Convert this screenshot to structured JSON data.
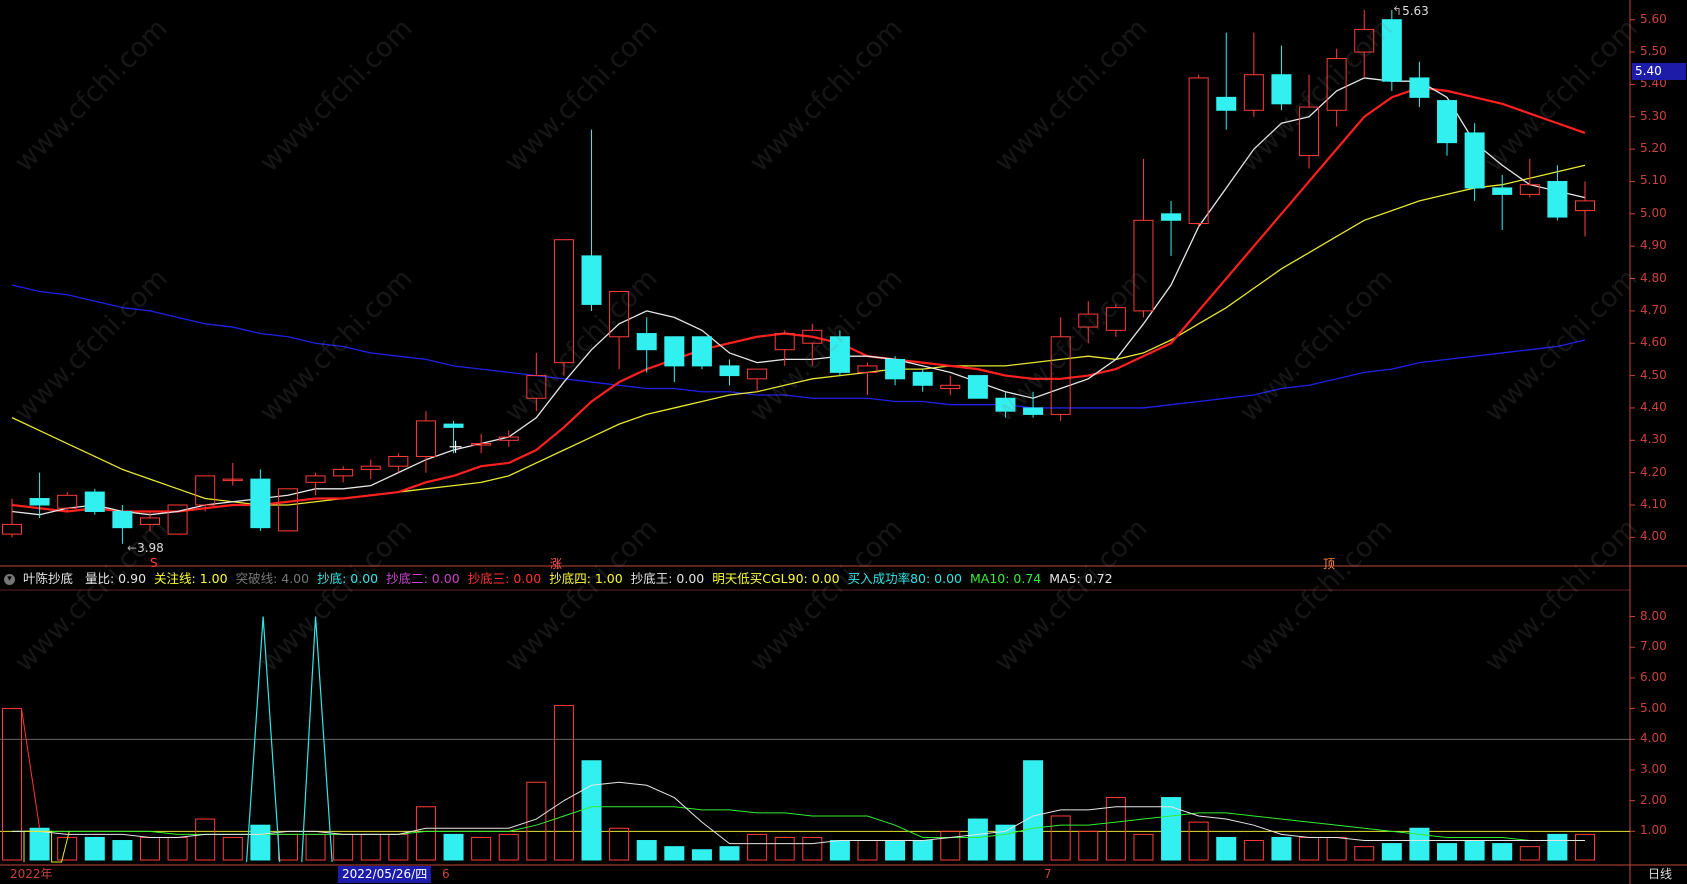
{
  "price_axis": {
    "ticks": [
      "5.60",
      "5.50",
      "5.40",
      "5.30",
      "5.20",
      "5.10",
      "5.00",
      "4.90",
      "4.80",
      "4.70",
      "4.60",
      "4.50",
      "4.40",
      "4.30",
      "4.20",
      "4.10",
      "4.00"
    ],
    "current_price": "5.40"
  },
  "volume_axis": {
    "ticks": [
      "8.00",
      "7.00",
      "6.00",
      "5.00",
      "4.00",
      "3.00",
      "2.00",
      "1.00"
    ]
  },
  "annotations": {
    "high_label": "5.63",
    "low_label": "3.98",
    "marker_s": "S",
    "marker_zhang": "涨",
    "marker_ding": "顶"
  },
  "indicator": {
    "name": "叶陈抄底",
    "items": [
      {
        "label": "量比: 0.90",
        "color": "#e6e6e6"
      },
      {
        "label": "关注线: 1.00",
        "color": "#ffff33"
      },
      {
        "label": "突破线: 4.00",
        "color": "#777777"
      },
      {
        "label": "抄底: 0.00",
        "color": "#33e6e6"
      },
      {
        "label": "抄底二: 0.00",
        "color": "#cc44cc"
      },
      {
        "label": "抄底三: 0.00",
        "color": "#ff3333"
      },
      {
        "label": "抄底四: 1.00",
        "color": "#ffff33"
      },
      {
        "label": "抄底王: 0.00",
        "color": "#e6e6e6"
      },
      {
        "label": "明天低买CGL90: 0.00",
        "color": "#ffff33"
      },
      {
        "label": "买入成功率80: 0.00",
        "color": "#33e6e6"
      },
      {
        "label": "MA10: 0.74",
        "color": "#33ee33"
      },
      {
        "label": "MA5: 0.72",
        "color": "#e6e6e6"
      }
    ]
  },
  "bottom_bar": {
    "year": "2022年",
    "cursor_date": "2022/05/26/四",
    "month_6": "6",
    "month_7": "7",
    "period": "日线"
  },
  "watermark_text": "www.cfchi.com",
  "colors": {
    "up": "#ff3b3b",
    "down": "#33f0f0",
    "ma5": "#e6e6e6",
    "ma10": "#ff2020",
    "ma20": "#e6e633",
    "ma60": "#2020e6",
    "axis": "#c8433c"
  },
  "chart_data": {
    "type": "candlestick",
    "price_range": [
      3.93,
      5.63
    ],
    "candles": [
      {
        "o": 4.01,
        "h": 4.12,
        "l": 4.0,
        "c": 4.04
      },
      {
        "o": 4.12,
        "h": 4.2,
        "l": 4.06,
        "c": 4.1
      },
      {
        "o": 4.09,
        "h": 4.14,
        "l": 4.08,
        "c": 4.13
      },
      {
        "o": 4.14,
        "h": 4.15,
        "l": 4.07,
        "c": 4.08
      },
      {
        "o": 4.08,
        "h": 4.1,
        "l": 3.98,
        "c": 4.03
      },
      {
        "o": 4.04,
        "h": 4.08,
        "l": 4.02,
        "c": 4.06
      },
      {
        "o": 4.01,
        "h": 4.1,
        "l": 4.01,
        "c": 4.1
      },
      {
        "o": 4.1,
        "h": 4.19,
        "l": 4.08,
        "c": 4.19
      },
      {
        "o": 4.18,
        "h": 4.23,
        "l": 4.16,
        "c": 4.18
      },
      {
        "o": 4.18,
        "h": 4.21,
        "l": 4.02,
        "c": 4.03
      },
      {
        "o": 4.02,
        "h": 4.15,
        "l": 4.02,
        "c": 4.15
      },
      {
        "o": 4.17,
        "h": 4.2,
        "l": 4.13,
        "c": 4.19
      },
      {
        "o": 4.19,
        "h": 4.22,
        "l": 4.17,
        "c": 4.21
      },
      {
        "o": 4.21,
        "h": 4.24,
        "l": 4.18,
        "c": 4.22
      },
      {
        "o": 4.22,
        "h": 4.26,
        "l": 4.2,
        "c": 4.25
      },
      {
        "o": 4.25,
        "h": 4.39,
        "l": 4.2,
        "c": 4.36
      },
      {
        "o": 4.35,
        "h": 4.36,
        "l": 4.26,
        "c": 4.34
      },
      {
        "o": 4.29,
        "h": 4.32,
        "l": 4.26,
        "c": 4.29
      },
      {
        "o": 4.3,
        "h": 4.33,
        "l": 4.28,
        "c": 4.31
      },
      {
        "o": 4.43,
        "h": 4.57,
        "l": 4.39,
        "c": 4.5
      },
      {
        "o": 4.54,
        "h": 4.92,
        "l": 4.5,
        "c": 4.92
      },
      {
        "o": 4.87,
        "h": 5.26,
        "l": 4.7,
        "c": 4.72
      },
      {
        "o": 4.62,
        "h": 4.76,
        "l": 4.52,
        "c": 4.76
      },
      {
        "o": 4.63,
        "h": 4.68,
        "l": 4.51,
        "c": 4.58
      },
      {
        "o": 4.62,
        "h": 4.62,
        "l": 4.48,
        "c": 4.53
      },
      {
        "o": 4.62,
        "h": 4.62,
        "l": 4.52,
        "c": 4.53
      },
      {
        "o": 4.53,
        "h": 4.55,
        "l": 4.47,
        "c": 4.5
      },
      {
        "o": 4.49,
        "h": 4.52,
        "l": 4.45,
        "c": 4.52
      },
      {
        "o": 4.58,
        "h": 4.64,
        "l": 4.53,
        "c": 4.63
      },
      {
        "o": 4.6,
        "h": 4.66,
        "l": 4.53,
        "c": 4.64
      },
      {
        "o": 4.62,
        "h": 4.64,
        "l": 4.5,
        "c": 4.51
      },
      {
        "o": 4.51,
        "h": 4.54,
        "l": 4.44,
        "c": 4.53
      },
      {
        "o": 4.55,
        "h": 4.56,
        "l": 4.47,
        "c": 4.49
      },
      {
        "o": 4.51,
        "h": 4.52,
        "l": 4.45,
        "c": 4.47
      },
      {
        "o": 4.46,
        "h": 4.5,
        "l": 4.44,
        "c": 4.47
      },
      {
        "o": 4.5,
        "h": 4.5,
        "l": 4.43,
        "c": 4.43
      },
      {
        "o": 4.43,
        "h": 4.45,
        "l": 4.37,
        "c": 4.39
      },
      {
        "o": 4.4,
        "h": 4.45,
        "l": 4.37,
        "c": 4.38
      },
      {
        "o": 4.38,
        "h": 4.68,
        "l": 4.36,
        "c": 4.62
      },
      {
        "o": 4.65,
        "h": 4.73,
        "l": 4.6,
        "c": 4.69
      },
      {
        "o": 4.64,
        "h": 4.72,
        "l": 4.62,
        "c": 4.71
      },
      {
        "o": 4.7,
        "h": 5.17,
        "l": 4.68,
        "c": 4.98
      },
      {
        "o": 5.0,
        "h": 5.04,
        "l": 4.87,
        "c": 4.98
      },
      {
        "o": 4.97,
        "h": 5.43,
        "l": 4.96,
        "c": 5.42
      },
      {
        "o": 5.36,
        "h": 5.56,
        "l": 5.26,
        "c": 5.32
      },
      {
        "o": 5.32,
        "h": 5.56,
        "l": 5.3,
        "c": 5.43
      },
      {
        "o": 5.43,
        "h": 5.52,
        "l": 5.32,
        "c": 5.34
      },
      {
        "o": 5.18,
        "h": 5.43,
        "l": 5.14,
        "c": 5.33
      },
      {
        "o": 5.32,
        "h": 5.51,
        "l": 5.27,
        "c": 5.48
      },
      {
        "o": 5.5,
        "h": 5.63,
        "l": 5.42,
        "c": 5.57
      },
      {
        "o": 5.6,
        "h": 5.63,
        "l": 5.38,
        "c": 5.41
      },
      {
        "o": 5.42,
        "h": 5.47,
        "l": 5.33,
        "c": 5.36
      },
      {
        "o": 5.35,
        "h": 5.35,
        "l": 5.18,
        "c": 5.22
      },
      {
        "o": 5.25,
        "h": 5.28,
        "l": 5.04,
        "c": 5.08
      },
      {
        "o": 5.08,
        "h": 5.12,
        "l": 4.95,
        "c": 5.06
      },
      {
        "o": 5.06,
        "h": 5.17,
        "l": 5.05,
        "c": 5.09
      },
      {
        "o": 5.1,
        "h": 5.15,
        "l": 4.98,
        "c": 4.99
      },
      {
        "o": 5.01,
        "h": 5.1,
        "l": 4.93,
        "c": 5.04
      }
    ],
    "ma5": [
      4.08,
      4.07,
      4.09,
      4.1,
      4.08,
      4.07,
      4.08,
      4.1,
      4.11,
      4.12,
      4.13,
      4.15,
      4.15,
      4.16,
      4.2,
      4.24,
      4.27,
      4.29,
      4.31,
      4.37,
      4.48,
      4.58,
      4.66,
      4.7,
      4.68,
      4.64,
      4.57,
      4.54,
      4.55,
      4.55,
      4.56,
      4.56,
      4.55,
      4.53,
      4.51,
      4.48,
      4.45,
      4.43,
      4.46,
      4.49,
      4.55,
      4.66,
      4.78,
      4.96,
      5.08,
      5.2,
      5.28,
      5.3,
      5.38,
      5.42,
      5.41,
      5.41,
      5.36,
      5.22,
      5.15,
      5.09,
      5.07,
      5.05
    ],
    "ma10": [
      4.1,
      4.09,
      4.08,
      4.09,
      4.08,
      4.08,
      4.08,
      4.09,
      4.1,
      4.1,
      4.11,
      4.12,
      4.12,
      4.13,
      4.14,
      4.17,
      4.19,
      4.22,
      4.23,
      4.27,
      4.34,
      4.42,
      4.48,
      4.52,
      4.55,
      4.58,
      4.6,
      4.62,
      4.63,
      4.62,
      4.6,
      4.56,
      4.55,
      4.54,
      4.53,
      4.52,
      4.5,
      4.49,
      4.49,
      4.5,
      4.52,
      4.56,
      4.6,
      4.7,
      4.8,
      4.9,
      5.0,
      5.1,
      5.2,
      5.3,
      5.36,
      5.39,
      5.38,
      5.36,
      5.34,
      5.31,
      5.28,
      5.25
    ],
    "ma20": [
      4.37,
      4.33,
      4.29,
      4.25,
      4.21,
      4.18,
      4.15,
      4.12,
      4.11,
      4.1,
      4.1,
      4.11,
      4.12,
      4.13,
      4.14,
      4.15,
      4.16,
      4.17,
      4.19,
      4.23,
      4.27,
      4.31,
      4.35,
      4.38,
      4.4,
      4.42,
      4.44,
      4.45,
      4.47,
      4.49,
      4.5,
      4.51,
      4.52,
      4.52,
      4.53,
      4.53,
      4.53,
      4.54,
      4.55,
      4.56,
      4.55,
      4.57,
      4.61,
      4.66,
      4.71,
      4.77,
      4.83,
      4.88,
      4.93,
      4.98,
      5.01,
      5.04,
      5.06,
      5.08,
      5.09,
      5.11,
      5.13,
      5.15
    ],
    "ma60": [
      4.78,
      4.76,
      4.75,
      4.73,
      4.71,
      4.7,
      4.68,
      4.66,
      4.65,
      4.63,
      4.62,
      4.6,
      4.59,
      4.57,
      4.56,
      4.55,
      4.53,
      4.52,
      4.51,
      4.5,
      4.49,
      4.48,
      4.47,
      4.46,
      4.46,
      4.45,
      4.45,
      4.44,
      4.44,
      4.43,
      4.43,
      4.43,
      4.42,
      4.42,
      4.41,
      4.41,
      4.41,
      4.4,
      4.4,
      4.4,
      4.4,
      4.4,
      4.41,
      4.42,
      4.43,
      4.44,
      4.46,
      4.47,
      4.49,
      4.51,
      4.52,
      4.54,
      4.55,
      4.56,
      4.57,
      4.58,
      4.59,
      4.61
    ],
    "volume_ratio": [
      5.0,
      1.1,
      0.8,
      0.8,
      0.7,
      0.8,
      0.8,
      1.4,
      0.8,
      1.2,
      0.9,
      0.9,
      0.9,
      0.9,
      0.9,
      1.8,
      0.9,
      0.8,
      0.9,
      2.6,
      5.1,
      3.3,
      1.1,
      0.7,
      0.5,
      0.4,
      0.5,
      0.9,
      0.8,
      0.8,
      0.7,
      0.7,
      0.7,
      0.7,
      1.0,
      1.4,
      1.2,
      3.3,
      1.5,
      1.0,
      2.1,
      0.9,
      2.1,
      1.3,
      0.8,
      0.7,
      0.8,
      0.8,
      0.8,
      0.5,
      0.6,
      1.1,
      0.6,
      0.7,
      0.6,
      0.5,
      0.9,
      0.9
    ],
    "vr_ma5": [
      1.0,
      1.0,
      0.9,
      0.9,
      0.9,
      0.8,
      0.8,
      0.9,
      0.9,
      0.9,
      1.0,
      1.0,
      0.9,
      0.9,
      0.9,
      1.1,
      1.1,
      1.1,
      1.1,
      1.4,
      2.0,
      2.5,
      2.6,
      2.5,
      2.1,
      1.3,
      0.6,
      0.6,
      0.6,
      0.6,
      0.7,
      0.7,
      0.7,
      0.7,
      0.8,
      0.9,
      1.0,
      1.5,
      1.7,
      1.7,
      1.8,
      1.8,
      1.8,
      1.5,
      1.4,
      1.2,
      0.9,
      0.8,
      0.8,
      0.7,
      0.7,
      0.7,
      0.7,
      0.7,
      0.7,
      0.7,
      0.7,
      0.7
    ],
    "vr_ma10": [
      1.0,
      1.0,
      1.0,
      1.0,
      1.0,
      1.0,
      0.9,
      0.9,
      0.9,
      0.9,
      0.9,
      0.9,
      0.9,
      0.9,
      0.9,
      1.0,
      1.0,
      1.0,
      1.0,
      1.2,
      1.5,
      1.8,
      1.8,
      1.8,
      1.8,
      1.7,
      1.7,
      1.6,
      1.6,
      1.5,
      1.5,
      1.5,
      1.2,
      0.8,
      0.8,
      0.8,
      0.9,
      1.1,
      1.2,
      1.2,
      1.3,
      1.4,
      1.5,
      1.6,
      1.6,
      1.5,
      1.4,
      1.3,
      1.2,
      1.1,
      1.0,
      0.9,
      0.8,
      0.8,
      0.8,
      0.7,
      0.7,
      0.7
    ],
    "spike_x": [
      8.5,
      9.1,
      9.7,
      10.5,
      11.0,
      11.6
    ],
    "guide_lines": {
      "focus": 1.0,
      "breakout": 4.0
    },
    "volume_range": [
      0,
      8.8
    ]
  }
}
